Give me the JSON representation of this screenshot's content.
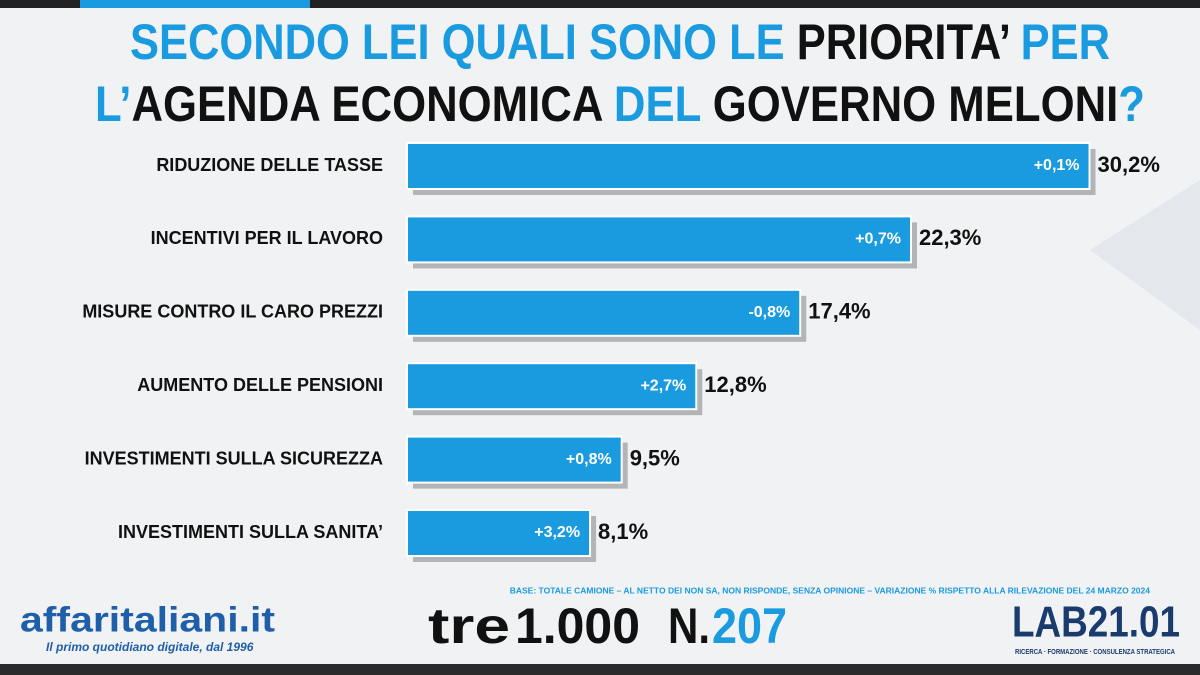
{
  "chart_data": {
    "type": "bar",
    "orientation": "horizontal",
    "title_lines": [
      [
        {
          "text": "SECONDO LEI QUALI SONO LE ",
          "color": "#1a9be0"
        },
        {
          "text": "PRIORITA’ ",
          "color": "#111111"
        },
        {
          "text": "PER",
          "color": "#1a9be0"
        }
      ],
      [
        {
          "text": "L’",
          "color": "#1a9be0"
        },
        {
          "text": "AGENDA ECONOMICA ",
          "color": "#111111"
        },
        {
          "text": "DEL ",
          "color": "#1a9be0"
        },
        {
          "text": "GOVERNO MELONI",
          "color": "#111111"
        },
        {
          "text": "?",
          "color": "#1a9be0"
        }
      ]
    ],
    "categories": [
      "RIDUZIONE DELLE TASSE",
      "INCENTIVI PER IL LAVORO",
      "MISURE CONTRO IL CARO PREZZI",
      "AUMENTO DELLE PENSIONI",
      "INVESTIMENTI SULLA SICUREZZA",
      "INVESTIMENTI SULLA SANITA’"
    ],
    "values": [
      30.2,
      22.3,
      17.4,
      12.8,
      9.5,
      8.1
    ],
    "value_labels": [
      "30,2%",
      "22,3%",
      "17,4%",
      "12,8%",
      "9,5%",
      "8,1%"
    ],
    "changes": [
      "+0,1%",
      "+0,7%",
      "-0,8%",
      "+2,7%",
      "+0,8%",
      "+3,2%"
    ],
    "color": "#1a9be0",
    "note": "BASE: TOTALE CAMIONE – AL NETTO DEI NON SA, NON RISPONDE, SENZA OPINIONE – VARIAZIONE % RISPETTO ALLA RILEVAZIONE DEL 24 MARZO 2024"
  },
  "footer": {
    "brand": "affaritaliani.it",
    "tagline": "Il primo quotidiano digitale, dal 1996",
    "series_name_a": "tre",
    "series_name_b": "1.000",
    "number_prefix": "N.",
    "number": "207",
    "lab": "LAB21.01",
    "lab_tagline": "RICERCA · FORMAZIONE · CONSULENZA STRATEGICA"
  }
}
